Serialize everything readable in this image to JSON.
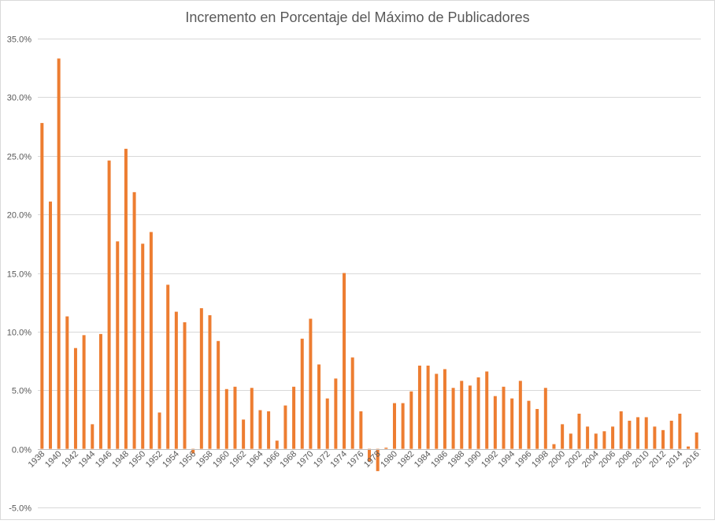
{
  "chart_data": {
    "type": "bar",
    "title": "Incremento en Porcentaje del Máximo de Publicadores",
    "xlabel": "",
    "ylabel": "",
    "ylim": [
      -5,
      35
    ],
    "yticks": [
      -5,
      0,
      5,
      10,
      15,
      20,
      25,
      30,
      35
    ],
    "ytick_labels": [
      "-5.0%",
      "0.0%",
      "5.0%",
      "10.0%",
      "15.0%",
      "20.0%",
      "25.0%",
      "30.0%",
      "35.0%"
    ],
    "grid": true,
    "legend": "none",
    "bar_color": "#ED7D31",
    "categories": [
      "1938",
      "1939",
      "1940",
      "1941",
      "1942",
      "1943",
      "1944",
      "1945",
      "1946",
      "1947",
      "1948",
      "1949",
      "1950",
      "1951",
      "1952",
      "1953",
      "1954",
      "1955",
      "1956",
      "1957",
      "1958",
      "1959",
      "1960",
      "1961",
      "1962",
      "1963",
      "1964",
      "1965",
      "1966",
      "1967",
      "1968",
      "1969",
      "1970",
      "1971",
      "1972",
      "1973",
      "1974",
      "1975",
      "1976",
      "1977",
      "1978",
      "1979",
      "1980",
      "1981",
      "1982",
      "1983",
      "1984",
      "1985",
      "1986",
      "1987",
      "1988",
      "1989",
      "1990",
      "1991",
      "1992",
      "1993",
      "1994",
      "1995",
      "1996",
      "1997",
      "1998",
      "1999",
      "2000",
      "2001",
      "2002",
      "2003",
      "2004",
      "2005",
      "2006",
      "2007",
      "2008",
      "2009",
      "2010",
      "2011",
      "2012",
      "2013",
      "2014",
      "2015",
      "2016"
    ],
    "x_tick_labels": [
      "1938",
      "1940",
      "1942",
      "1944",
      "1946",
      "1948",
      "1950",
      "1952",
      "1954",
      "1956",
      "1958",
      "1960",
      "1962",
      "1964",
      "1966",
      "1968",
      "1970",
      "1972",
      "1974",
      "1976",
      "1978",
      "1980",
      "1982",
      "1984",
      "1986",
      "1988",
      "1990",
      "1992",
      "1994",
      "1996",
      "1998",
      "2000",
      "2002",
      "2004",
      "2006",
      "2008",
      "2010",
      "2012",
      "2014",
      "2016"
    ],
    "values": [
      27.8,
      21.1,
      33.3,
      11.3,
      8.6,
      9.7,
      2.1,
      9.8,
      24.6,
      17.7,
      25.6,
      21.9,
      17.5,
      18.5,
      3.1,
      14.0,
      11.7,
      10.8,
      -0.4,
      12.0,
      11.4,
      9.2,
      5.1,
      5.3,
      2.5,
      5.2,
      3.3,
      3.2,
      0.7,
      3.7,
      5.3,
      9.4,
      11.1,
      7.2,
      4.3,
      6.0,
      15.0,
      7.8,
      3.2,
      -1.1,
      -1.9,
      0.1,
      3.9,
      3.9,
      4.9,
      7.1,
      7.1,
      6.4,
      6.8,
      5.2,
      5.8,
      5.4,
      6.1,
      6.6,
      4.5,
      5.3,
      4.3,
      5.8,
      4.1,
      3.4,
      5.2,
      0.4,
      2.1,
      1.3,
      3.0,
      1.9,
      1.3,
      1.5,
      1.9,
      3.2,
      2.4,
      2.7,
      2.7,
      1.9,
      1.6,
      2.4,
      3.0,
      0.2,
      1.4
    ]
  }
}
